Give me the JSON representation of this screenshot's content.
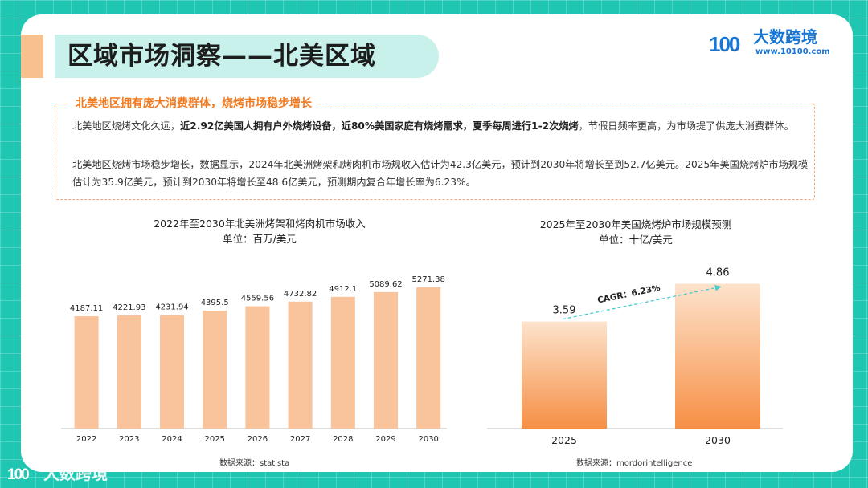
{
  "header": {
    "title": "区域市场洞察——北美区域"
  },
  "brand": {
    "logo_mark": "100",
    "name": "大数跨境",
    "url": "www.10100.com",
    "color": "#1976d2"
  },
  "summary": {
    "heading": "北美地区拥有庞大消费群体，烧烤市场稳步增长",
    "p1_a": "北美地区烧烤文化久远，",
    "p1_b": "近2.92亿美国人拥有户外烧烤设备，近80%美国家庭有烧烤需求，夏季每周进行1-2次烧烤",
    "p1_c": "，节假日频率更高，为市场提了供庞大消费群体。",
    "p2": "北美地区烧烤市场稳步增长，数据显示，2024年北美洲烤架和烤肉机市场规收入估计为42.3亿美元，预计到2030年将增长至到52.7亿美元。2025年美国烧烤炉市场规模估计为35.9亿美元，预计到2030年将增长至48.6亿美元，预测期内复合年增长率为6.23%。"
  },
  "chart_data": [
    {
      "type": "bar",
      "title": "2022年至2030年北美洲烤架和烤肉机市场收入",
      "subtitle": "单位：百万/美元",
      "categories": [
        "2022",
        "2023",
        "2024",
        "2025",
        "2026",
        "2027",
        "2028",
        "2029",
        "2030"
      ],
      "values": [
        4187.11,
        4221.93,
        4231.94,
        4395.5,
        4559.56,
        4732.82,
        4912.1,
        5089.62,
        5271.38
      ],
      "labels": [
        "4187.11",
        "4221.93",
        "4231.94",
        "4395.5",
        "4559.56",
        "4732.82",
        "4912.1",
        "5089.62",
        "5271.38"
      ],
      "ylim": [
        0,
        7000
      ],
      "source": "数据来源：statista",
      "color": "#f9c39c"
    },
    {
      "type": "bar",
      "title": "2025年至2030年美国烧烤炉市场规模预测",
      "subtitle": "单位：十亿/美元",
      "categories": [
        "2025",
        "2030"
      ],
      "values": [
        3.59,
        4.86
      ],
      "labels": [
        "3.59",
        "4.86"
      ],
      "ylim": [
        0,
        6.3
      ],
      "annotation": "CAGR：6.23%",
      "source": "数据来源：mordorintelligence",
      "color_top": "#fde3cc",
      "color_bottom": "#f68f45"
    }
  ],
  "watermark": {
    "mark": "100",
    "text": "大数跨境"
  }
}
